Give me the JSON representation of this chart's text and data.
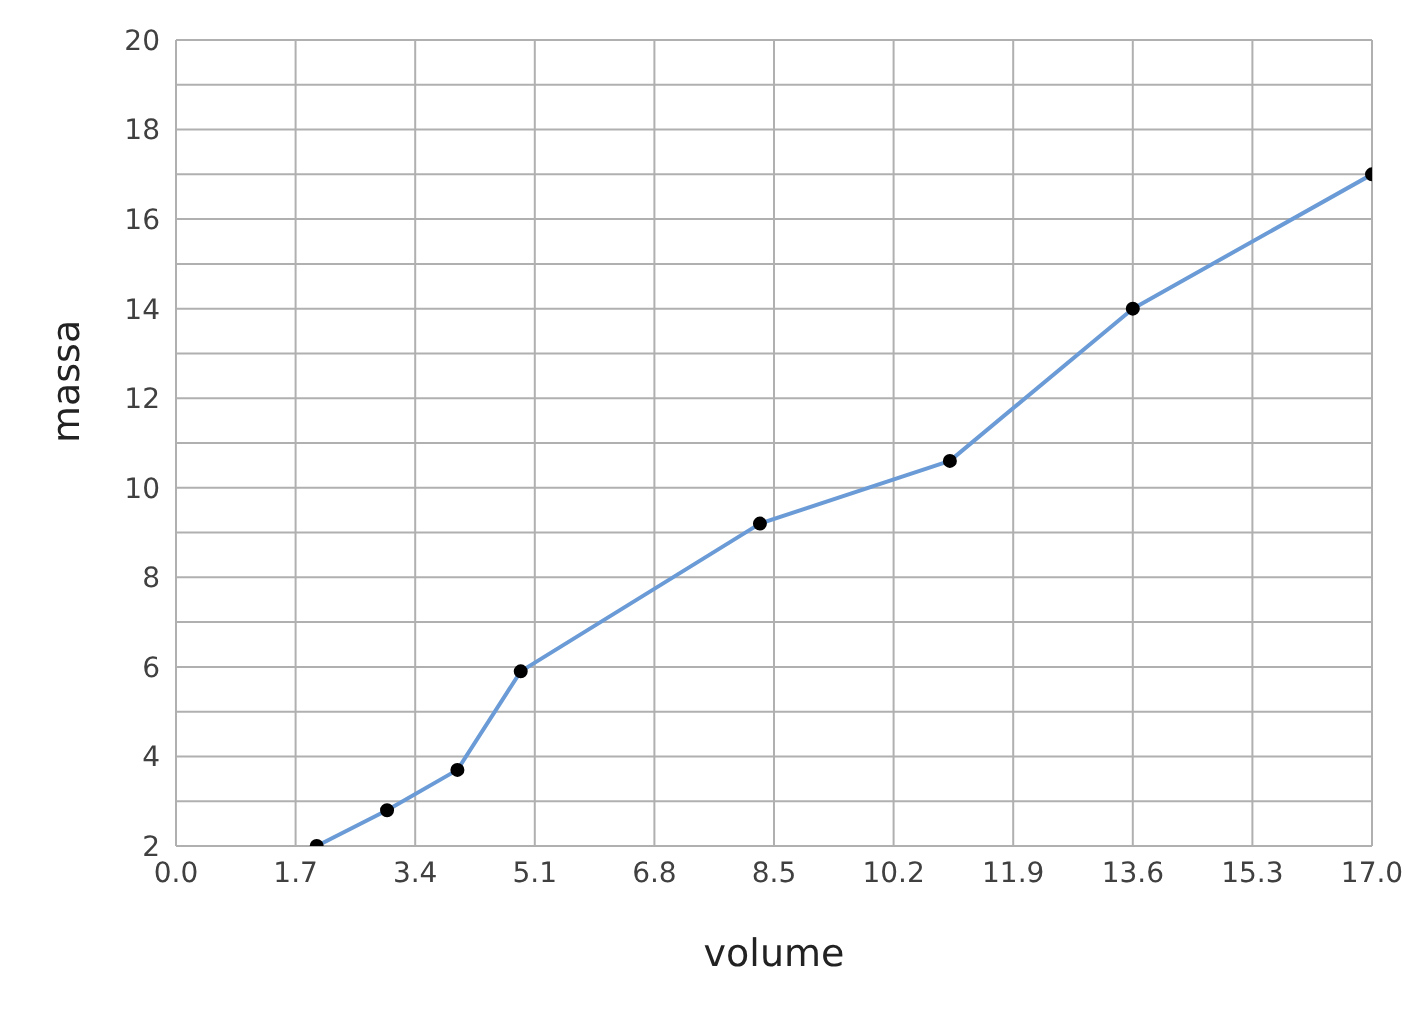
{
  "chart_data": {
    "type": "line",
    "xlabel": "volume",
    "ylabel": "massa",
    "x": [
      2.0,
      3.0,
      4.0,
      4.9,
      8.3,
      11.0,
      13.6,
      17.0
    ],
    "series": [
      {
        "color": "#6a9bd6",
        "values": [
          2.0,
          2.8,
          3.7,
          5.9,
          9.2,
          10.6,
          14.0,
          17.0
        ]
      }
    ],
    "xlim": [
      0,
      17
    ],
    "xticks": [
      {
        "value": 0,
        "label": "0.0"
      },
      1.7,
      3.4,
      5.1,
      6.8,
      8.5,
      10.2,
      11.9,
      13.6,
      15.3,
      {
        "value": 17,
        "label": "17.0"
      }
    ],
    "ylim": [
      2,
      20
    ],
    "yticks": [
      2,
      {
        "value": 3,
        "label": null
      },
      4,
      {
        "value": 5,
        "label": null
      },
      6,
      {
        "value": 7,
        "label": null
      },
      8,
      {
        "value": 9,
        "label": null
      },
      10,
      {
        "value": 11,
        "label": null
      },
      12,
      {
        "value": 13,
        "label": null
      },
      14,
      {
        "value": 15,
        "label": null
      },
      16,
      {
        "value": 17,
        "label": null
      },
      18,
      {
        "value": 19,
        "label": null
      },
      20
    ],
    "grid": true,
    "marker": "circle",
    "line_style": "solid",
    "legend": false
  }
}
